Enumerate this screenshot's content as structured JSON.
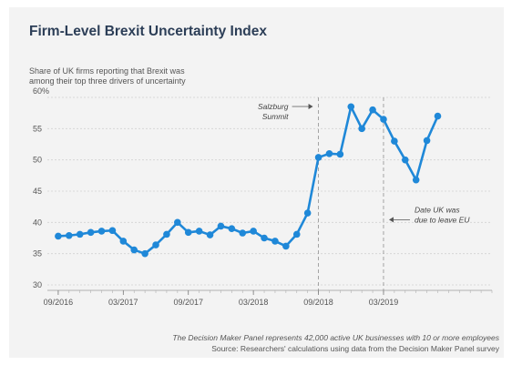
{
  "chart_data": {
    "type": "line",
    "title": "Firm-Level Brexit Uncertainty Index",
    "subtitle": "Share of UK firms reporting that Brexit was\namong their top three drivers of uncertainty",
    "y_top_label": "60%",
    "yticks": [
      30,
      35,
      40,
      45,
      50,
      55
    ],
    "ylim": [
      30,
      60
    ],
    "xlim": [
      "2016-08",
      "2020-01"
    ],
    "xticks": [
      {
        "date": "2016-09",
        "label": "09/2016"
      },
      {
        "date": "2017-03",
        "label": "03/2017"
      },
      {
        "date": "2017-09",
        "label": "09/2017"
      },
      {
        "date": "2018-03",
        "label": "03/2018"
      },
      {
        "date": "2018-09",
        "label": "09/2018"
      },
      {
        "date": "2019-03",
        "label": "03/2019"
      }
    ],
    "grid": "horizontal",
    "series": [
      {
        "color": "#1f88d8",
        "points": [
          {
            "x": "2016-09",
            "y": 37.8
          },
          {
            "x": "2016-10",
            "y": 37.9
          },
          {
            "x": "2016-11",
            "y": 38.1
          },
          {
            "x": "2016-12",
            "y": 38.4
          },
          {
            "x": "2017-01",
            "y": 38.6
          },
          {
            "x": "2017-02",
            "y": 38.7
          },
          {
            "x": "2017-03",
            "y": 37.0
          },
          {
            "x": "2017-04",
            "y": 35.6
          },
          {
            "x": "2017-05",
            "y": 35.0
          },
          {
            "x": "2017-06",
            "y": 36.4
          },
          {
            "x": "2017-07",
            "y": 38.1
          },
          {
            "x": "2017-08",
            "y": 40.0
          },
          {
            "x": "2017-09",
            "y": 38.4
          },
          {
            "x": "2017-10",
            "y": 38.6
          },
          {
            "x": "2017-11",
            "y": 38.0
          },
          {
            "x": "2017-12",
            "y": 39.4
          },
          {
            "x": "2018-01",
            "y": 39.0
          },
          {
            "x": "2018-02",
            "y": 38.3
          },
          {
            "x": "2018-03",
            "y": 38.6
          },
          {
            "x": "2018-04",
            "y": 37.5
          },
          {
            "x": "2018-05",
            "y": 37.0
          },
          {
            "x": "2018-06",
            "y": 36.2
          },
          {
            "x": "2018-07",
            "y": 38.1
          },
          {
            "x": "2018-08",
            "y": 41.5
          },
          {
            "x": "2018-09",
            "y": 50.4
          },
          {
            "x": "2018-10",
            "y": 51.0
          },
          {
            "x": "2018-11",
            "y": 50.9
          },
          {
            "x": "2018-12",
            "y": 58.5
          },
          {
            "x": "2019-01",
            "y": 55.0
          },
          {
            "x": "2019-02",
            "y": 58.0
          },
          {
            "x": "2019-03",
            "y": 56.5
          },
          {
            "x": "2019-04",
            "y": 53.0
          },
          {
            "x": "2019-05",
            "y": 50.0
          },
          {
            "x": "2019-06",
            "y": 46.8
          },
          {
            "x": "2019-07",
            "y": 53.1
          },
          {
            "x": "2019-08",
            "y": 57.0
          }
        ]
      }
    ],
    "annotations": [
      {
        "x": "2018-09",
        "text": "Salzburg\nSummit",
        "side": "left",
        "position": "top"
      },
      {
        "x": "2019-03",
        "text": "Date UK was\ndue to leave EU",
        "side": "right",
        "position": "bottom"
      }
    ],
    "notes": [
      "The Decision Maker Panel represents 42,000 active UK businesses with 10 or more employees",
      "Source: Researchers' calculations using data from the Decision Maker Panel survey"
    ]
  }
}
